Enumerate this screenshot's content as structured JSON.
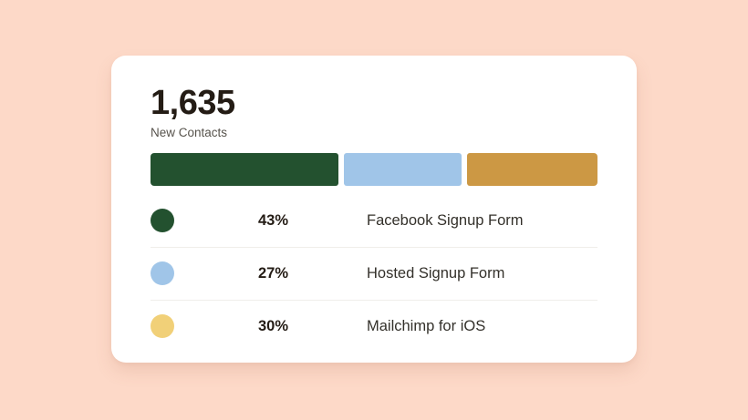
{
  "background_color": "#fdd9c8",
  "card": {
    "metric_value": "1,635",
    "metric_label": "New Contacts"
  },
  "chart_data": {
    "type": "bar",
    "variant": "horizontal-stacked",
    "title": "1,635",
    "subtitle": "New Contacts",
    "total_value": 1635,
    "categories": [
      "Facebook Signup Form",
      "Hosted Signup Form",
      "Mailchimp for iOS"
    ],
    "values": [
      43,
      27,
      30
    ],
    "unit": "%",
    "segment_colors": [
      "#23512f",
      "#a0c5e8",
      "#cc9844"
    ],
    "legend_position": "bottom",
    "grid": false
  },
  "legend": {
    "rows": [
      {
        "percent": "43%",
        "label": "Facebook Signup Form",
        "dot_color": "#23512f"
      },
      {
        "percent": "27%",
        "label": "Hosted Signup Form",
        "dot_color": "#a0c5e8"
      },
      {
        "percent": "30%",
        "label": "Mailchimp for iOS",
        "dot_color": "#f1d078"
      }
    ]
  }
}
